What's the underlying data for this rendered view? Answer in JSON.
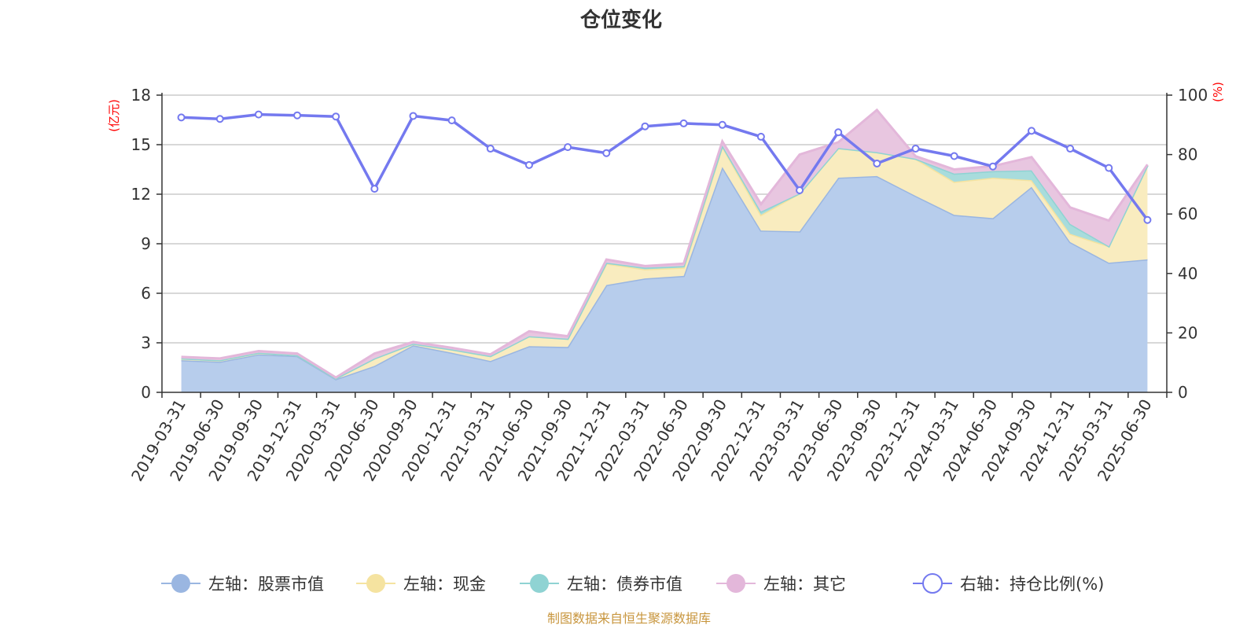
{
  "chart_data": {
    "type": "area",
    "title": "仓位变化",
    "categories": [
      "2019-03-31",
      "2019-06-30",
      "2019-09-30",
      "2019-12-31",
      "2020-03-31",
      "2020-06-30",
      "2020-09-30",
      "2020-12-31",
      "2021-03-31",
      "2021-06-30",
      "2021-09-30",
      "2021-12-31",
      "2022-03-31",
      "2022-06-30",
      "2022-09-30",
      "2022-12-31",
      "2023-03-31",
      "2023-06-30",
      "2023-09-30",
      "2023-12-31",
      "2024-03-31",
      "2024-06-30",
      "2024-09-30",
      "2024-12-31",
      "2025-03-31",
      "2025-06-30"
    ],
    "left_axis": {
      "unit": "(亿元)",
      "ylim": [
        0,
        18
      ],
      "ticks": [
        "0",
        "3",
        "6",
        "9",
        "12",
        "15",
        "18"
      ]
    },
    "right_axis": {
      "unit": "(%)",
      "ylim": [
        0,
        100
      ],
      "ticks": [
        "0",
        "20",
        "40",
        "60",
        "80",
        "100"
      ]
    },
    "series": [
      {
        "name": "左轴：股票市值",
        "axis": "left",
        "stack": true,
        "color": "#9ab6e1",
        "fill": "#b7cdec",
        "values": [
          1.95,
          1.85,
          2.3,
          2.2,
          0.8,
          1.6,
          2.85,
          2.4,
          1.9,
          2.8,
          2.75,
          6.5,
          6.9,
          7.05,
          13.65,
          9.8,
          9.75,
          13.0,
          13.1,
          11.9,
          10.75,
          10.55,
          12.45,
          9.1,
          7.85,
          8.05
        ]
      },
      {
        "name": "左轴：现金",
        "axis": "left",
        "stack": true,
        "color": "#f5e3a0",
        "fill": "#f9ecbf",
        "values": [
          0.1,
          0.1,
          0.1,
          0.05,
          0.05,
          0.45,
          0.1,
          0.2,
          0.3,
          0.6,
          0.5,
          1.3,
          0.55,
          0.5,
          1.25,
          0.95,
          2.3,
          1.8,
          1.45,
          2.25,
          2.0,
          2.45,
          0.4,
          0.5,
          1.0,
          5.7
        ]
      },
      {
        "name": "左轴：债券市值",
        "axis": "left",
        "stack": true,
        "color": "#8fd3d3",
        "fill": "#a8dcdc",
        "values": [
          0,
          0,
          0,
          0,
          0,
          0,
          0,
          0,
          0,
          0,
          0,
          0.05,
          0.1,
          0.1,
          0.05,
          0.2,
          0,
          0,
          0,
          0,
          0.5,
          0.4,
          0.6,
          0.6,
          0,
          0
        ]
      },
      {
        "name": "左轴：其它",
        "axis": "left",
        "stack": true,
        "color": "#e3b7da",
        "fill": "#e8c6e0",
        "values": [
          0.1,
          0.1,
          0.1,
          0.1,
          0.05,
          0.3,
          0.1,
          0.1,
          0.1,
          0.3,
          0.15,
          0.2,
          0.1,
          0.15,
          0.25,
          0.45,
          2.35,
          0.35,
          2.55,
          0.15,
          0.25,
          0.3,
          0.8,
          1.0,
          1.55,
          0.05
        ]
      },
      {
        "name": "右轴：持仓比例(%)",
        "axis": "right",
        "stack": false,
        "color": "#7479ef",
        "values": [
          92.5,
          92.0,
          93.5,
          93.2,
          92.8,
          68.5,
          93.0,
          91.5,
          82.0,
          76.5,
          82.5,
          80.5,
          89.5,
          90.5,
          90.0,
          86.0,
          68.0,
          87.5,
          77.0,
          82.0,
          79.5,
          76.0,
          88.0,
          82.0,
          75.5,
          58.0
        ]
      }
    ],
    "legend_position": "bottom",
    "grid": true
  },
  "footer": {
    "source": "制图数据来自恒生聚源数据库"
  }
}
